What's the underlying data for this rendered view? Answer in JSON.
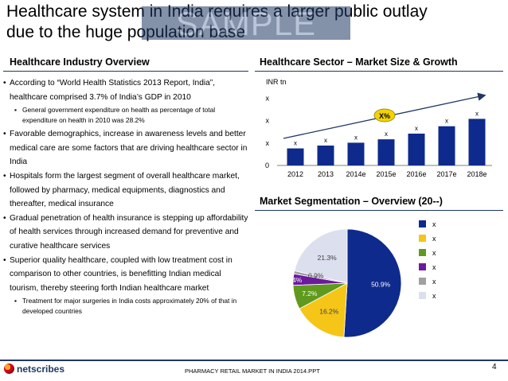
{
  "slide": {
    "title_line1": "Healthcare system in India requires a larger public outlay",
    "title_line2": "due to the huge population base",
    "watermark": "SAMPLE"
  },
  "left": {
    "heading": "Healthcare Industry Overview",
    "bullets": [
      {
        "text": "According to “World Health Statistics 2013 Report, India”, healthcare comprised 3.7% of India’s GDP in 2010",
        "subs": [
          "General government expenditure on health as percentage of total expenditure on health in 2010 was 28.2%"
        ]
      },
      {
        "text": "Favorable demographics, increase in awareness levels and better medical care are some factors that are driving healthcare sector in India",
        "subs": []
      },
      {
        "text": "Hospitals form the largest segment of overall healthcare market, followed by pharmacy, medical equipments, diagnostics and thereafter, medical insurance",
        "subs": []
      },
      {
        "text": "Gradual penetration of health insurance is stepping up affordability of health services through increased demand for preventive and curative healthcare services",
        "subs": []
      },
      {
        "text": "Superior quality healthcare, coupled with low treatment cost in comparison to other countries, is benefitting Indian medical tourism, thereby steering forth Indian healthcare market",
        "subs": [
          "Treatment for major surgeries in India costs approximately 20% of that in developed countries"
        ]
      }
    ]
  },
  "right_top": {
    "heading": "Healthcare Sector – Market Size & Growth"
  },
  "right_bottom": {
    "heading": "Market Segmentation – Overview (20--)"
  },
  "footer": {
    "logo": "netscribes",
    "text": "PHARMACY RETAIL MARKET IN INDIA 2014.PPT",
    "page": "4"
  },
  "colors": {
    "navy": "#1f3864",
    "bar": "#0e2a8c",
    "badge": "#f2d300"
  },
  "chart_data": [
    {
      "type": "bar",
      "ylabel": "INR tn",
      "categories": [
        "2012",
        "2013",
        "2014e",
        "2015e",
        "2016e",
        "2017e",
        "2018e"
      ],
      "values": [
        3.0,
        3.5,
        4.0,
        4.6,
        5.6,
        6.9,
        8.2
      ],
      "value_labels": [
        "x",
        "x",
        "x",
        "x",
        "x",
        "x",
        "x"
      ],
      "ytick_labels": [
        "0",
        "x",
        "x",
        "x"
      ],
      "ylim": [
        0,
        14
      ],
      "annotation": "X%",
      "trend_arrow": true
    },
    {
      "type": "pie",
      "title": "Market Segmentation – Overview (20--)",
      "values": [
        50.9,
        16.2,
        7.2,
        3.4,
        0.9,
        21.3
      ],
      "value_labels": [
        "50.9%",
        "16.2%",
        "7.2%",
        "3.4%",
        "0.9%",
        "21.3%"
      ],
      "legend": [
        "x",
        "x",
        "x",
        "x",
        "x",
        "x"
      ],
      "colors": [
        "#0e2a8c",
        "#f5c518",
        "#5f9a1e",
        "#6b1a9e",
        "#a0a0a0",
        "#dcdfee"
      ]
    }
  ]
}
